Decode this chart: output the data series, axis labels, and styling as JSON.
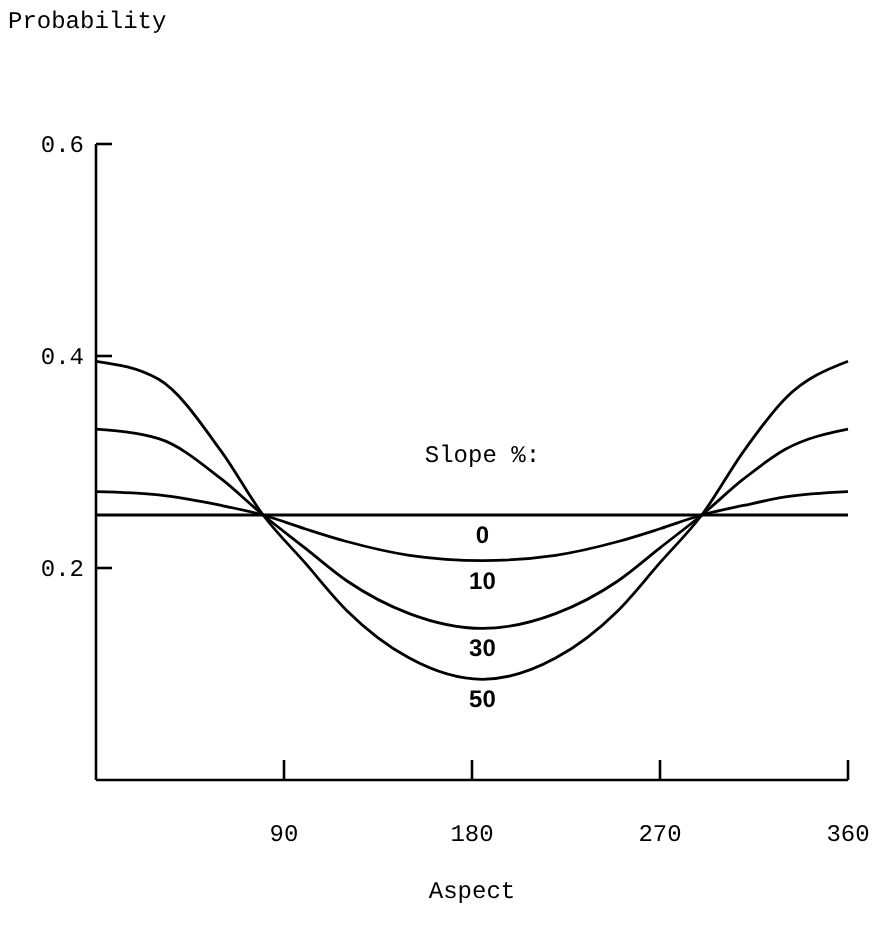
{
  "chart_data": {
    "type": "line",
    "xlabel": "Aspect",
    "ylabel": "Probability",
    "legend_title": "Slope %:",
    "legend": false,
    "grid": false,
    "marker": "none",
    "line_style": "solid",
    "x": [
      0,
      30,
      60,
      80,
      100,
      120,
      150,
      185,
      220,
      250,
      270,
      290,
      310,
      330,
      360
    ],
    "xlim": [
      0,
      360
    ],
    "xticks": [
      90,
      180,
      270,
      360
    ],
    "ylim": [
      0,
      0.6
    ],
    "yticks": [
      {
        "value": 0.2,
        "label": "0.2"
      },
      {
        "value": 0.4,
        "label": "0.4"
      },
      {
        "value": 0.6,
        "label": "0.6"
      }
    ],
    "series": [
      {
        "name": "0",
        "color": "#000000",
        "values": [
          0.25,
          0.25,
          0.25,
          0.25,
          0.25,
          0.25,
          0.25,
          0.25,
          0.25,
          0.25,
          0.25,
          0.25,
          0.25,
          0.25,
          0.25
        ]
      },
      {
        "name": "10",
        "color": "#000000",
        "values": [
          0.272,
          0.269,
          0.259,
          0.25,
          0.237,
          0.225,
          0.212,
          0.207,
          0.212,
          0.225,
          0.237,
          0.25,
          0.259,
          0.267,
          0.272
        ]
      },
      {
        "name": "30",
        "color": "#000000",
        "values": [
          0.331,
          0.322,
          0.284,
          0.25,
          0.219,
          0.188,
          0.157,
          0.143,
          0.157,
          0.188,
          0.219,
          0.25,
          0.284,
          0.312,
          0.331
        ]
      },
      {
        "name": "50",
        "color": "#000000",
        "values": [
          0.395,
          0.378,
          0.31,
          0.25,
          0.205,
          0.16,
          0.115,
          0.095,
          0.115,
          0.16,
          0.205,
          0.25,
          0.31,
          0.36,
          0.395
        ]
      }
    ]
  }
}
